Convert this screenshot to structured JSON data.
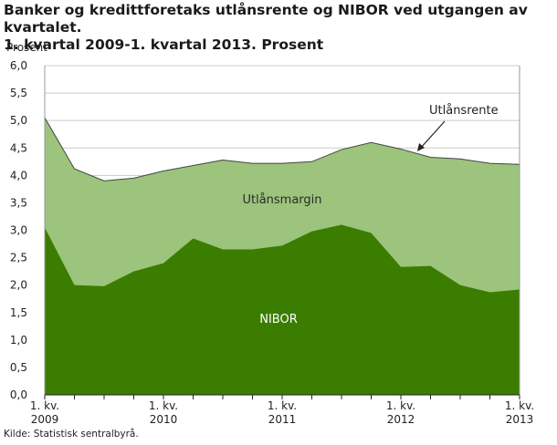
{
  "chart_data": {
    "type": "area",
    "title_line1": "Banker og kredittforetaks utlånsrente og NIBOR ved utgangen av kvartalet.",
    "title_line2": "1. kvartal 2009-1. kvartal 2013. Prosent",
    "ylabel": "Prosent",
    "ylim": [
      0,
      6
    ],
    "yticks": [
      "0,0",
      "0,5",
      "1,0",
      "1,5",
      "2,0",
      "2,5",
      "3,0",
      "3,5",
      "4,0",
      "4,5",
      "5,0",
      "5,5",
      "6,0"
    ],
    "x": [
      "2009Q1",
      "2009Q2",
      "2009Q3",
      "2009Q4",
      "2010Q1",
      "2010Q2",
      "2010Q3",
      "2010Q4",
      "2011Q1",
      "2011Q2",
      "2011Q3",
      "2011Q4",
      "2012Q1",
      "2012Q2",
      "2012Q3",
      "2012Q4",
      "2013Q1"
    ],
    "xtick_labels": [
      {
        "index": 0,
        "line1": "1. kv.",
        "line2": "2009"
      },
      {
        "index": 4,
        "line1": "1. kv.",
        "line2": "2010"
      },
      {
        "index": 8,
        "line1": "1. kv.",
        "line2": "2011"
      },
      {
        "index": 12,
        "line1": "1. kv.",
        "line2": "2012"
      },
      {
        "index": 16,
        "line1": "1. kv.",
        "line2": "2013"
      }
    ],
    "series": [
      {
        "name": "NIBOR",
        "color": "#3a7d00",
        "values": [
          3.05,
          2.0,
          1.98,
          2.25,
          2.4,
          2.85,
          2.65,
          2.65,
          2.72,
          2.98,
          3.1,
          2.95,
          2.33,
          2.35,
          2.0,
          1.87,
          1.92
        ]
      },
      {
        "name": "Utlånsrente",
        "color": "#9cc47c",
        "values": [
          5.05,
          4.12,
          3.9,
          3.95,
          4.08,
          4.18,
          4.28,
          4.22,
          4.22,
          4.25,
          4.47,
          4.6,
          4.48,
          4.33,
          4.3,
          4.22,
          4.2
        ]
      }
    ],
    "labels": {
      "margin": "Utlånsmargin",
      "nibor": "NIBOR",
      "rate": "Utlånsrente"
    },
    "grid": true
  },
  "source": "Kilde: Statistisk sentralbyrå."
}
